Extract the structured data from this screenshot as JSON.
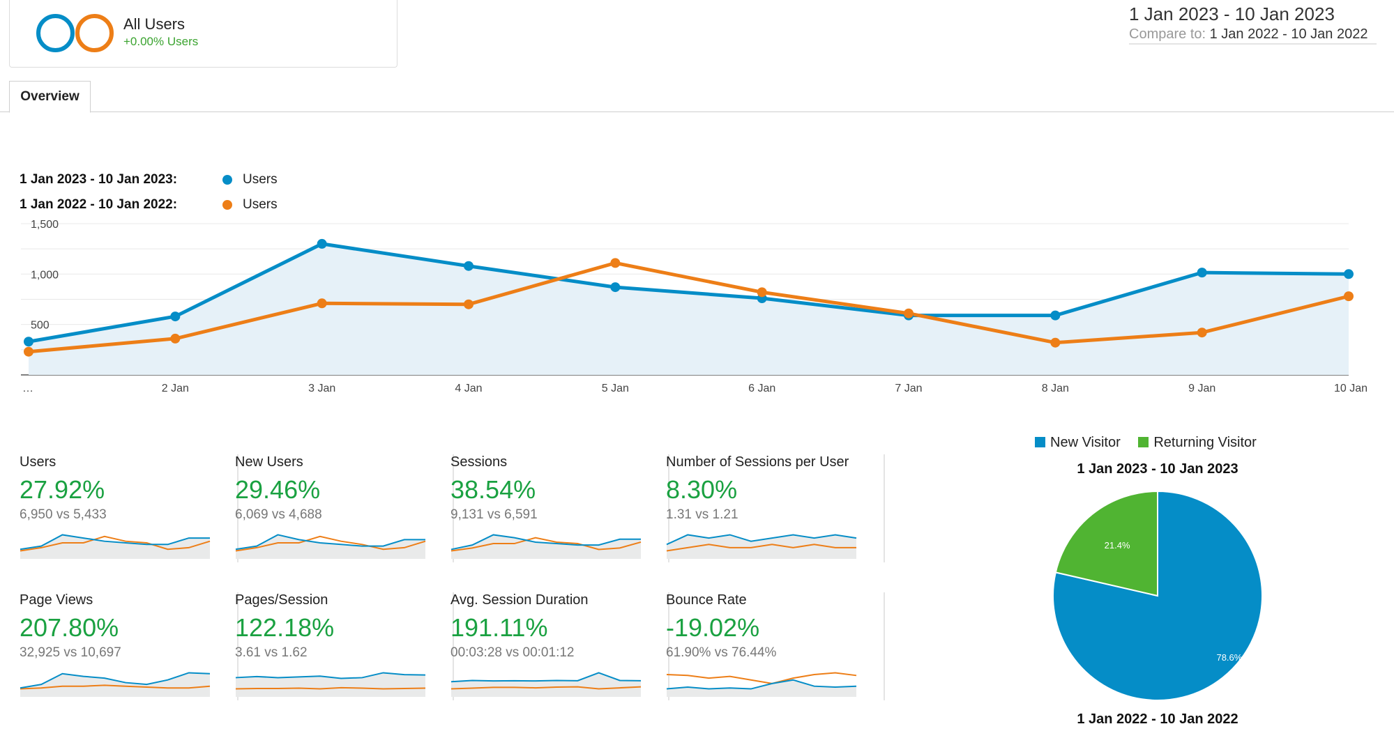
{
  "segment": {
    "name": "All Users",
    "change": "+0.00% Users",
    "colors": [
      "#058dc7",
      "#ed7e17"
    ]
  },
  "date_range": {
    "current": "1 Jan 2023 - 10 Jan 2023",
    "compare_label": "Compare to:",
    "compare": "1 Jan 2022 - 10 Jan 2022"
  },
  "tabs": [
    {
      "label": "Overview",
      "active": true
    }
  ],
  "legend": [
    {
      "range": "1 Jan 2023 - 10 Jan 2023:",
      "metric": "Users",
      "color": "#058dc7"
    },
    {
      "range": "1 Jan 2022 - 10 Jan 2022:",
      "metric": "Users",
      "color": "#ed7e17"
    }
  ],
  "chart_data": [
    {
      "type": "line",
      "title": "",
      "x": [
        "…",
        "2 Jan",
        "3 Jan",
        "4 Jan",
        "5 Jan",
        "6 Jan",
        "7 Jan",
        "8 Jan",
        "9 Jan",
        "10 Jan"
      ],
      "y_ticks": [
        "500",
        "1,000",
        "1,500"
      ],
      "ylim": [
        0,
        1500
      ],
      "grid": true,
      "series": [
        {
          "name": "1 Jan 2023 - 10 Jan 2023",
          "color": "#058dc7",
          "fill": true,
          "values": [
            330,
            580,
            1300,
            1080,
            870,
            760,
            590,
            590,
            1015,
            1000
          ]
        },
        {
          "name": "1 Jan 2022 - 10 Jan 2022",
          "color": "#ed7e17",
          "fill": false,
          "values": [
            230,
            360,
            710,
            700,
            1110,
            820,
            610,
            320,
            420,
            780
          ]
        }
      ]
    },
    {
      "type": "pie",
      "title": "1 Jan 2023 - 10 Jan 2023",
      "labels": [
        "New Visitor",
        "Returning Visitor"
      ],
      "values": [
        78.6,
        21.4
      ],
      "value_labels": [
        "78.6%",
        "21.4%"
      ],
      "colors": [
        "#058dc7",
        "#50b432"
      ]
    }
  ],
  "pie_second_title": "1 Jan 2022 - 10 Jan 2022",
  "metrics": [
    {
      "label": "Users",
      "value": "27.92%",
      "compare": "6,950 vs 5,433",
      "a": [
        4,
        6,
        13,
        11,
        9,
        8,
        7,
        7,
        11,
        11
      ],
      "b": [
        3,
        5,
        8,
        8,
        12,
        9,
        8,
        4,
        5,
        9
      ]
    },
    {
      "label": "New Users",
      "value": "29.46%",
      "compare": "6,069 vs 4,688",
      "a": [
        4,
        6,
        13,
        10,
        8,
        7,
        6,
        6,
        10,
        10
      ],
      "b": [
        3,
        5,
        8,
        8,
        12,
        9,
        7,
        4,
        5,
        9
      ]
    },
    {
      "label": "Sessions",
      "value": "38.54%",
      "compare": "9,131 vs 6,591",
      "a": [
        4,
        7,
        14,
        12,
        9,
        8,
        7,
        7,
        11,
        11
      ],
      "b": [
        3,
        5,
        8,
        8,
        12,
        9,
        8,
        4,
        5,
        9
      ]
    },
    {
      "label": "Number of Sessions per User",
      "value": "8.30%",
      "compare": "1.31 vs 1.21",
      "a": [
        20,
        20.3,
        20.2,
        20.3,
        20.1,
        20.2,
        20.3,
        20.2,
        20.3,
        20.2
      ],
      "b": [
        19.8,
        19.9,
        20,
        19.9,
        19.9,
        20,
        19.9,
        20,
        19.9,
        19.9
      ]
    },
    {
      "label": "Page Views",
      "value": "207.80%",
      "compare": "32,925 vs 10,697",
      "a": [
        4,
        8,
        20,
        17,
        15,
        10,
        8,
        13,
        21,
        20
      ],
      "b": [
        3,
        4,
        6,
        6,
        7,
        6,
        5,
        4,
        4,
        6
      ]
    },
    {
      "label": "Pages/Session",
      "value": "122.18%",
      "compare": "3.61 vs 1.62",
      "a": [
        12,
        12.3,
        12,
        12.2,
        12.4,
        11.8,
        12,
        13.3,
        12.8,
        12.7
      ],
      "b": [
        9,
        9.1,
        9.1,
        9.2,
        9,
        9.3,
        9.2,
        9,
        9.1,
        9.2
      ]
    },
    {
      "label": "Avg. Session Duration",
      "value": "191.11%",
      "compare": "00:03:28 vs 00:01:12",
      "a": [
        9,
        9.5,
        9.3,
        9.4,
        9.3,
        9.5,
        9.4,
        12.5,
        9.5,
        9.4
      ],
      "b": [
        6.2,
        6.5,
        6.8,
        6.8,
        6.6,
        6.9,
        7,
        6.2,
        6.6,
        7
      ]
    },
    {
      "label": "Bounce Rate",
      "value": "-19.02%",
      "compare": "61.90% vs 76.44%",
      "a": [
        15,
        15.2,
        15,
        15.1,
        15,
        15.6,
        16,
        15.3,
        15.2,
        15.3
      ],
      "b": [
        16.6,
        16.5,
        16.2,
        16.4,
        16,
        15.6,
        16.2,
        16.6,
        16.8,
        16.5
      ]
    }
  ]
}
